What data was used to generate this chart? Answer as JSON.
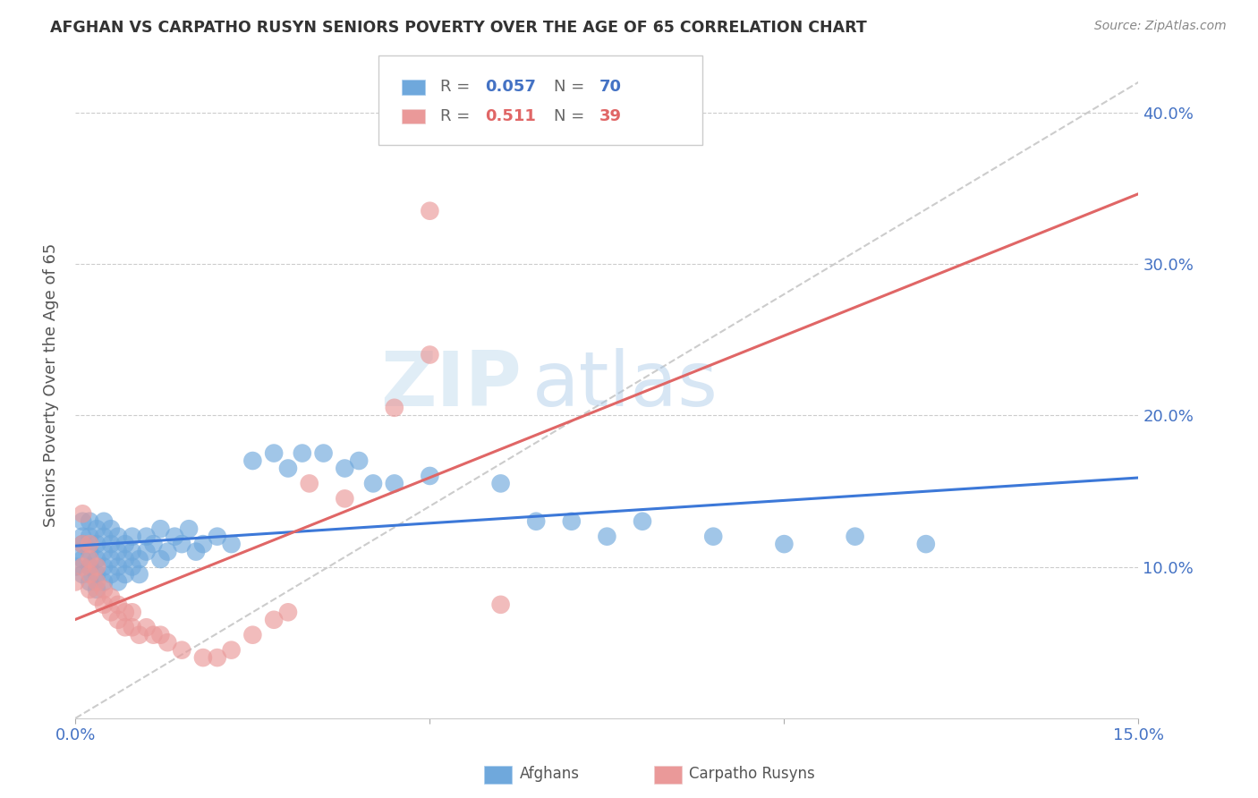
{
  "title": "AFGHAN VS CARPATHO RUSYN SENIORS POVERTY OVER THE AGE OF 65 CORRELATION CHART",
  "source": "Source: ZipAtlas.com",
  "ylabel": "Seniors Poverty Over the Age of 65",
  "xlim": [
    0.0,
    0.15
  ],
  "ylim": [
    0.0,
    0.42
  ],
  "afghan_R": 0.057,
  "afghan_N": 70,
  "rusyn_R": 0.511,
  "rusyn_N": 39,
  "afghan_color": "#6fa8dc",
  "rusyn_color": "#ea9999",
  "afghan_line_color": "#3c78d8",
  "rusyn_line_color": "#e06666",
  "watermark_zip": "ZIP",
  "watermark_atlas": "atlas",
  "background_color": "#ffffff",
  "afghan_x": [
    0.0,
    0.0,
    0.001,
    0.001,
    0.001,
    0.001,
    0.001,
    0.002,
    0.002,
    0.002,
    0.002,
    0.002,
    0.003,
    0.003,
    0.003,
    0.003,
    0.003,
    0.004,
    0.004,
    0.004,
    0.004,
    0.004,
    0.005,
    0.005,
    0.005,
    0.005,
    0.006,
    0.006,
    0.006,
    0.006,
    0.007,
    0.007,
    0.007,
    0.008,
    0.008,
    0.008,
    0.009,
    0.009,
    0.01,
    0.01,
    0.011,
    0.012,
    0.012,
    0.013,
    0.014,
    0.015,
    0.016,
    0.017,
    0.018,
    0.02,
    0.022,
    0.025,
    0.028,
    0.03,
    0.032,
    0.035,
    0.038,
    0.04,
    0.042,
    0.045,
    0.05,
    0.06,
    0.065,
    0.07,
    0.075,
    0.08,
    0.09,
    0.1,
    0.11,
    0.12
  ],
  "afghan_y": [
    0.1,
    0.11,
    0.095,
    0.105,
    0.115,
    0.12,
    0.13,
    0.09,
    0.1,
    0.11,
    0.12,
    0.13,
    0.085,
    0.095,
    0.105,
    0.115,
    0.125,
    0.09,
    0.1,
    0.11,
    0.12,
    0.13,
    0.095,
    0.105,
    0.115,
    0.125,
    0.09,
    0.1,
    0.11,
    0.12,
    0.095,
    0.105,
    0.115,
    0.1,
    0.11,
    0.12,
    0.095,
    0.105,
    0.11,
    0.12,
    0.115,
    0.105,
    0.125,
    0.11,
    0.12,
    0.115,
    0.125,
    0.11,
    0.115,
    0.12,
    0.115,
    0.17,
    0.175,
    0.165,
    0.175,
    0.175,
    0.165,
    0.17,
    0.155,
    0.155,
    0.16,
    0.155,
    0.13,
    0.13,
    0.12,
    0.13,
    0.12,
    0.115,
    0.12,
    0.115
  ],
  "rusyn_x": [
    0.0,
    0.001,
    0.001,
    0.001,
    0.002,
    0.002,
    0.002,
    0.002,
    0.003,
    0.003,
    0.003,
    0.004,
    0.004,
    0.005,
    0.005,
    0.006,
    0.006,
    0.007,
    0.007,
    0.008,
    0.008,
    0.009,
    0.01,
    0.011,
    0.012,
    0.013,
    0.015,
    0.018,
    0.02,
    0.022,
    0.025,
    0.028,
    0.03,
    0.033,
    0.038,
    0.045,
    0.05,
    0.06,
    0.05
  ],
  "rusyn_y": [
    0.09,
    0.1,
    0.115,
    0.135,
    0.085,
    0.095,
    0.105,
    0.115,
    0.08,
    0.09,
    0.1,
    0.075,
    0.085,
    0.07,
    0.08,
    0.065,
    0.075,
    0.06,
    0.07,
    0.06,
    0.07,
    0.055,
    0.06,
    0.055,
    0.055,
    0.05,
    0.045,
    0.04,
    0.04,
    0.045,
    0.055,
    0.065,
    0.07,
    0.155,
    0.145,
    0.205,
    0.24,
    0.075,
    0.335
  ]
}
